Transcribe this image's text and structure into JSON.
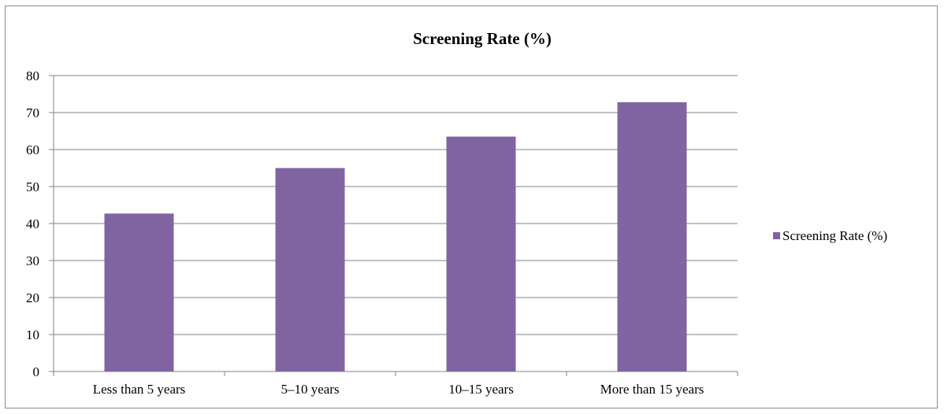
{
  "chart_data": {
    "type": "bar",
    "title": "Screening Rate (%)",
    "xlabel": "",
    "ylabel": "",
    "categories": [
      "Less than 5 years",
      "5–10 years",
      "10–15 years",
      "More than 15 years"
    ],
    "series": [
      {
        "name": "Screening Rate (%)",
        "values": [
          42.7,
          55.0,
          63.5,
          72.8
        ]
      }
    ],
    "ylim": [
      0,
      80
    ],
    "yticks": [
      0,
      10,
      20,
      30,
      40,
      50,
      60,
      70,
      80
    ],
    "grid": true,
    "legend_position": "right",
    "colors": {
      "bar": "#8064a2",
      "grid": "#868686",
      "axis": "#868686"
    }
  }
}
